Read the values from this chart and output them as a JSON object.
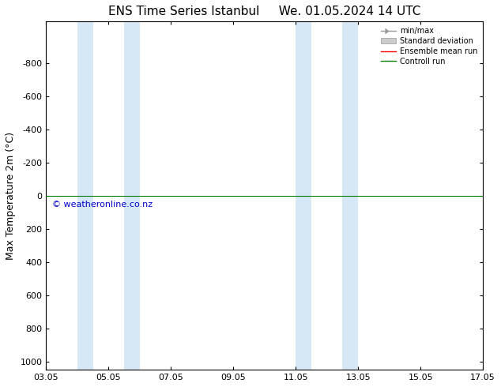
{
  "title_left": "ENS Time Series Istanbul",
  "title_right": "We. 01.05.2024 14 UTC",
  "ylabel": "Max Temperature 2m (°C)",
  "ylim_top": -1050,
  "ylim_bottom": 1050,
  "yticks": [
    -800,
    -600,
    -400,
    -200,
    0,
    200,
    400,
    600,
    800,
    1000
  ],
  "xtick_labels": [
    "03.05",
    "05.05",
    "07.05",
    "09.05",
    "11.05",
    "13.05",
    "15.05",
    "17.05"
  ],
  "xtick_positions": [
    3,
    5,
    7,
    9,
    11,
    13,
    15,
    17
  ],
  "xlim": [
    3,
    17
  ],
  "blue_bands": [
    [
      4.0,
      4.5
    ],
    [
      5.5,
      6.0
    ],
    [
      11.0,
      11.5
    ],
    [
      12.5,
      13.0
    ]
  ],
  "blue_band_color": "#d6e8f5",
  "control_run_y": 0,
  "control_run_color": "#008000",
  "control_run_lw": 0.8,
  "ensemble_mean_color": "#ff0000",
  "copyright_text": "© weatheronline.co.nz",
  "copyright_color": "#0000cc",
  "background_color": "#ffffff",
  "plot_bg_color": "#ffffff",
  "legend_items": [
    "min/max",
    "Standard deviation",
    "Ensemble mean run",
    "Controll run"
  ],
  "title_fontsize": 11,
  "tick_fontsize": 8,
  "ylabel_fontsize": 9
}
